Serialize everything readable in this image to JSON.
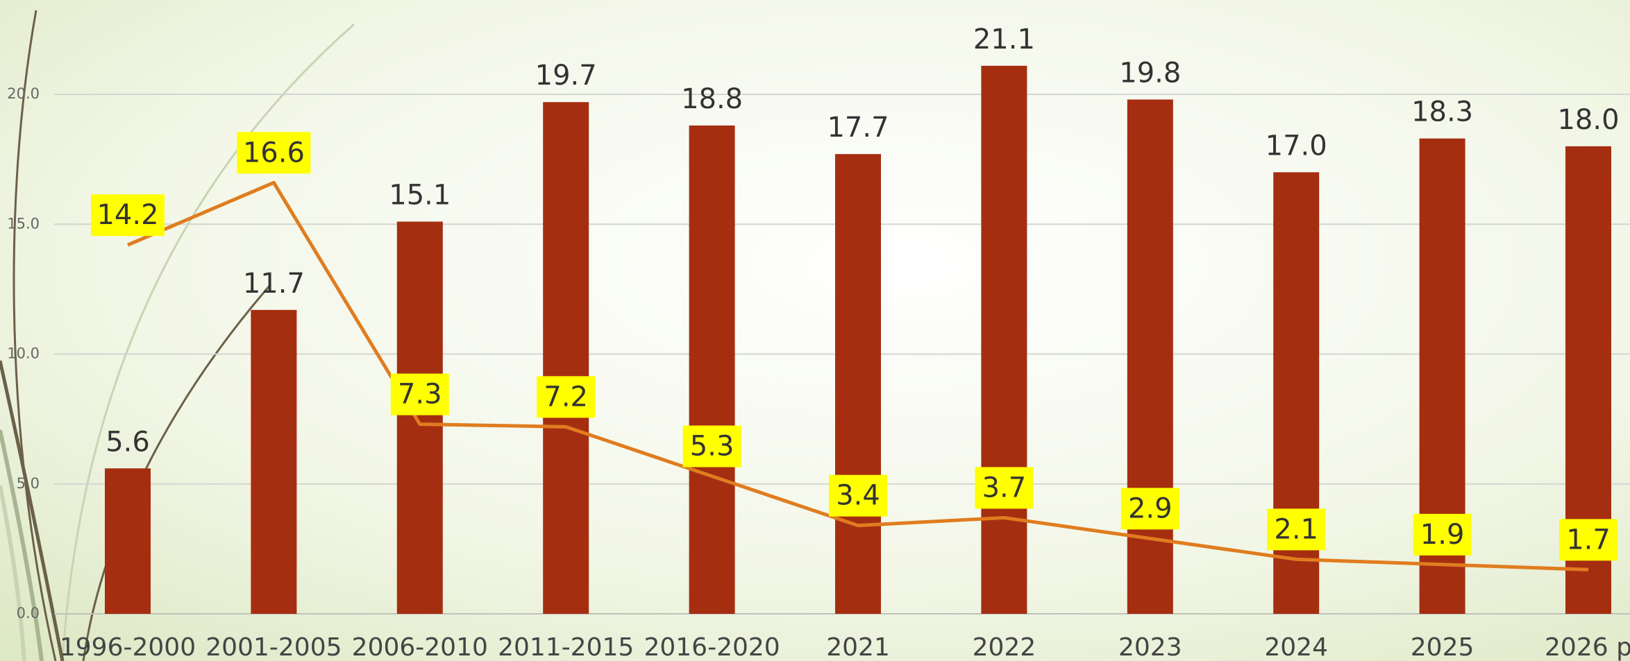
{
  "chart_data": {
    "type": "bar",
    "categories": [
      "1996-2000",
      "2001-2005",
      "2006-2010",
      "2011-2015",
      "2016-2020",
      "2021",
      "2022",
      "2023",
      "2024",
      "2025",
      "2026 p"
    ],
    "series": [
      {
        "type": "bar",
        "color": "#a52e11",
        "values": [
          5.6,
          11.7,
          15.1,
          19.7,
          18.8,
          17.7,
          21.1,
          19.8,
          17.0,
          18.3,
          18.0
        ],
        "value_labels": [
          "5.6",
          "11.7",
          "15.1",
          "19.7",
          "18.8",
          "17.7",
          "21.1",
          "19.8",
          "17.0",
          "18.3",
          "18.0"
        ]
      },
      {
        "type": "line",
        "color": "#e07c1e",
        "label_background": "#ffff00",
        "values": [
          14.2,
          16.6,
          7.3,
          7.2,
          5.3,
          3.4,
          3.7,
          2.9,
          2.1,
          1.9,
          1.7
        ],
        "value_labels": [
          "14.2",
          "16.6",
          "7.3",
          "7.2",
          "5.3",
          "3.4",
          "3.7",
          "2.9",
          "2.1",
          "1.9",
          "1.7"
        ]
      }
    ],
    "ylim": [
      0,
      21.1
    ],
    "yticks": [
      {
        "value": 0,
        "label": "0.0"
      },
      {
        "value": 5,
        "label": "5.0"
      },
      {
        "value": 10,
        "label": "10.0"
      },
      {
        "value": 15,
        "label": "15.0"
      },
      {
        "value": 20,
        "label": "20.0"
      }
    ],
    "grid": true
  }
}
